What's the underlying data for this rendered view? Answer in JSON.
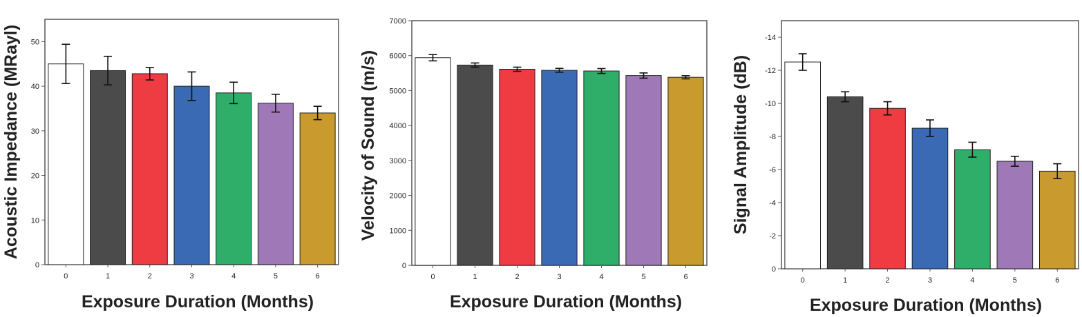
{
  "colors": {
    "bar_stroke": "#222222",
    "bars": [
      "#ffffff",
      "#4b4b4b",
      "#ef3b42",
      "#3a6ab3",
      "#2fae6a",
      "#9f78b8",
      "#c99a2e"
    ]
  },
  "chart_data": [
    {
      "type": "bar",
      "categories": [
        "0",
        "1",
        "2",
        "3",
        "4",
        "5",
        "6"
      ],
      "values": [
        45.0,
        43.5,
        42.8,
        40.0,
        38.5,
        36.2,
        34.0
      ],
      "errors": [
        4.4,
        3.2,
        1.4,
        3.2,
        2.4,
        2.0,
        1.5
      ],
      "xlabel": "Exposure Duration (Months)",
      "ylabel": "Acoustic Impedance (MRayl)",
      "ylim": [
        0,
        55
      ],
      "yticks": [
        0,
        10,
        20,
        30,
        40,
        50
      ],
      "ytick_labels": [
        "0",
        "10",
        "20",
        "30",
        "40",
        "50"
      ]
    },
    {
      "type": "bar",
      "categories": [
        "0",
        "1",
        "2",
        "3",
        "4",
        "5",
        "6"
      ],
      "values": [
        5940,
        5730,
        5610,
        5580,
        5560,
        5430,
        5380
      ],
      "errors": [
        90,
        60,
        60,
        55,
        70,
        75,
        45
      ],
      "xlabel": "Exposure Duration (Months)",
      "ylabel": "Velocity of Sound (m/s)",
      "ylim": [
        0,
        7000
      ],
      "yticks": [
        0,
        1000,
        2000,
        3000,
        4000,
        5000,
        6000,
        7000
      ],
      "ytick_labels": [
        "0",
        "1000",
        "2000",
        "3000",
        "4000",
        "5000",
        "6000",
        "7000"
      ]
    },
    {
      "type": "bar",
      "categories": [
        "0",
        "1",
        "2",
        "3",
        "4",
        "5",
        "6"
      ],
      "values": [
        -12.5,
        -10.4,
        -9.7,
        -8.5,
        -7.2,
        -6.5,
        -5.9
      ],
      "errors": [
        0.5,
        0.3,
        0.4,
        0.5,
        0.45,
        0.3,
        0.45
      ],
      "xlabel": "Exposure Duration (Months)",
      "ylabel": "Signal Amplitude (dB)",
      "ylim": [
        0,
        -15
      ],
      "yticks": [
        0,
        -2,
        -4,
        -6,
        -8,
        -10,
        -12,
        -14
      ],
      "ytick_labels": [
        "0",
        "-2",
        "-4",
        "-6",
        "-8",
        "-10",
        "-12",
        "-14"
      ]
    }
  ]
}
